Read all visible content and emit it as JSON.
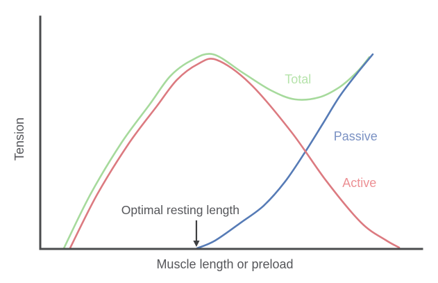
{
  "chart_data": {
    "type": "line",
    "title": "",
    "xlabel": "Muscle length or preload",
    "ylabel": "Tension",
    "xlim": [
      0,
      100
    ],
    "ylim": [
      0,
      100
    ],
    "grid": false,
    "legend_position": "inline-labels",
    "axis_color": "#4a4b4d",
    "text_color": "#55565a",
    "background_color": "#ffffff",
    "series": [
      {
        "name": "Total",
        "color": "#a6da9c",
        "label_color": "#b6e3ab",
        "label_x": 67.5,
        "label_y": 73.0,
        "points": [
          [
            6.2,
            0.3
          ],
          [
            13.1,
            23.4
          ],
          [
            21.3,
            45.8
          ],
          [
            28.7,
            62.3
          ],
          [
            34.0,
            74.3
          ],
          [
            39.5,
            81.1
          ],
          [
            45.3,
            83.8
          ],
          [
            53.1,
            75.8
          ],
          [
            60.4,
            68.3
          ],
          [
            66.7,
            64.4
          ],
          [
            73.1,
            65.3
          ],
          [
            78.5,
            69.8
          ],
          [
            83.1,
            76.4
          ],
          [
            86.2,
            82.6
          ]
        ]
      },
      {
        "name": "Passive",
        "color": "#567bb6",
        "label_color": "#7a91c3",
        "label_x": 82.6,
        "label_y": 48.5,
        "points": [
          [
            41.1,
            0.3
          ],
          [
            45.8,
            3.6
          ],
          [
            52.6,
            11.4
          ],
          [
            58.5,
            18.6
          ],
          [
            64.0,
            28.7
          ],
          [
            69.1,
            41.0
          ],
          [
            74.0,
            53.9
          ],
          [
            78.5,
            65.9
          ],
          [
            83.1,
            75.8
          ],
          [
            87.1,
            83.8
          ]
        ]
      },
      {
        "name": "Active",
        "color": "#dc7a80",
        "label_color": "#ec9094",
        "label_x": 83.6,
        "label_y": 28.4,
        "points": [
          [
            7.8,
            0.3
          ],
          [
            14.9,
            23.4
          ],
          [
            23.1,
            45.2
          ],
          [
            30.5,
            61.4
          ],
          [
            35.8,
            72.8
          ],
          [
            41.3,
            79.6
          ],
          [
            46.2,
            81.4
          ],
          [
            54.9,
            71.3
          ],
          [
            65.8,
            50.3
          ],
          [
            74.9,
            29.3
          ],
          [
            84.0,
            11.4
          ],
          [
            90.4,
            3.9
          ],
          [
            94.0,
            0.6
          ]
        ]
      }
    ],
    "annotation": {
      "text": "Optimal resting length",
      "text_x": 36.7,
      "text_y": 16.8,
      "arrow_x": 40.9,
      "arrow_y_from": 12.3,
      "arrow_y_to": 0.9,
      "arrow_color": "#3f4042"
    }
  }
}
